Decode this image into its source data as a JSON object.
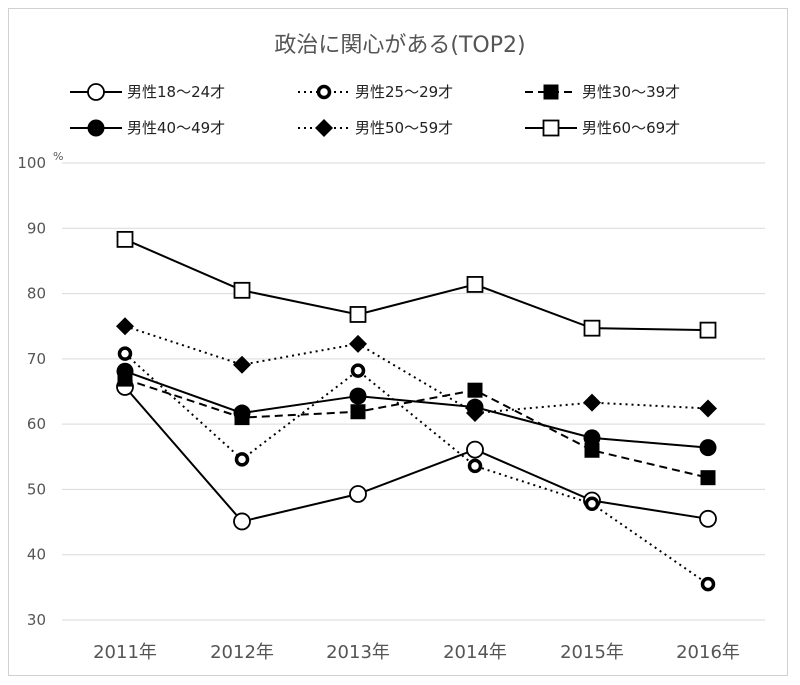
{
  "chart_data": {
    "type": "line",
    "title": "政治に関心がある(TOP2)",
    "y_unit": "%",
    "categories": [
      "2011年",
      "2012年",
      "2013年",
      "2014年",
      "2015年",
      "2016年"
    ],
    "ylim": [
      30,
      100
    ],
    "yticks": [
      30,
      40,
      50,
      60,
      70,
      80,
      90,
      100
    ],
    "grid": true,
    "legend_position": "top",
    "series": [
      {
        "name": "男性18～24才",
        "values": [
          65.7,
          45.1,
          49.3,
          56.1,
          48.3,
          45.5
        ],
        "marker": "open-circle",
        "line": "solid"
      },
      {
        "name": "男性25～29才",
        "values": [
          70.8,
          54.6,
          68.2,
          53.6,
          47.8,
          35.5
        ],
        "marker": "ring",
        "line": "dotted"
      },
      {
        "name": "男性30～39才",
        "values": [
          66.9,
          61.0,
          61.9,
          65.2,
          56.0,
          51.8
        ],
        "marker": "filled-square",
        "line": "dashed"
      },
      {
        "name": "男性40～49才",
        "values": [
          68.1,
          61.7,
          64.3,
          62.6,
          57.9,
          56.4
        ],
        "marker": "filled-circle",
        "line": "solid"
      },
      {
        "name": "男性50～59才",
        "values": [
          75.0,
          69.1,
          72.3,
          61.7,
          63.3,
          62.4
        ],
        "marker": "filled-diamond",
        "line": "dotted"
      },
      {
        "name": "男性60～69才",
        "values": [
          88.3,
          80.5,
          76.8,
          81.4,
          74.7,
          74.4
        ],
        "marker": "open-square",
        "line": "solid"
      }
    ]
  }
}
